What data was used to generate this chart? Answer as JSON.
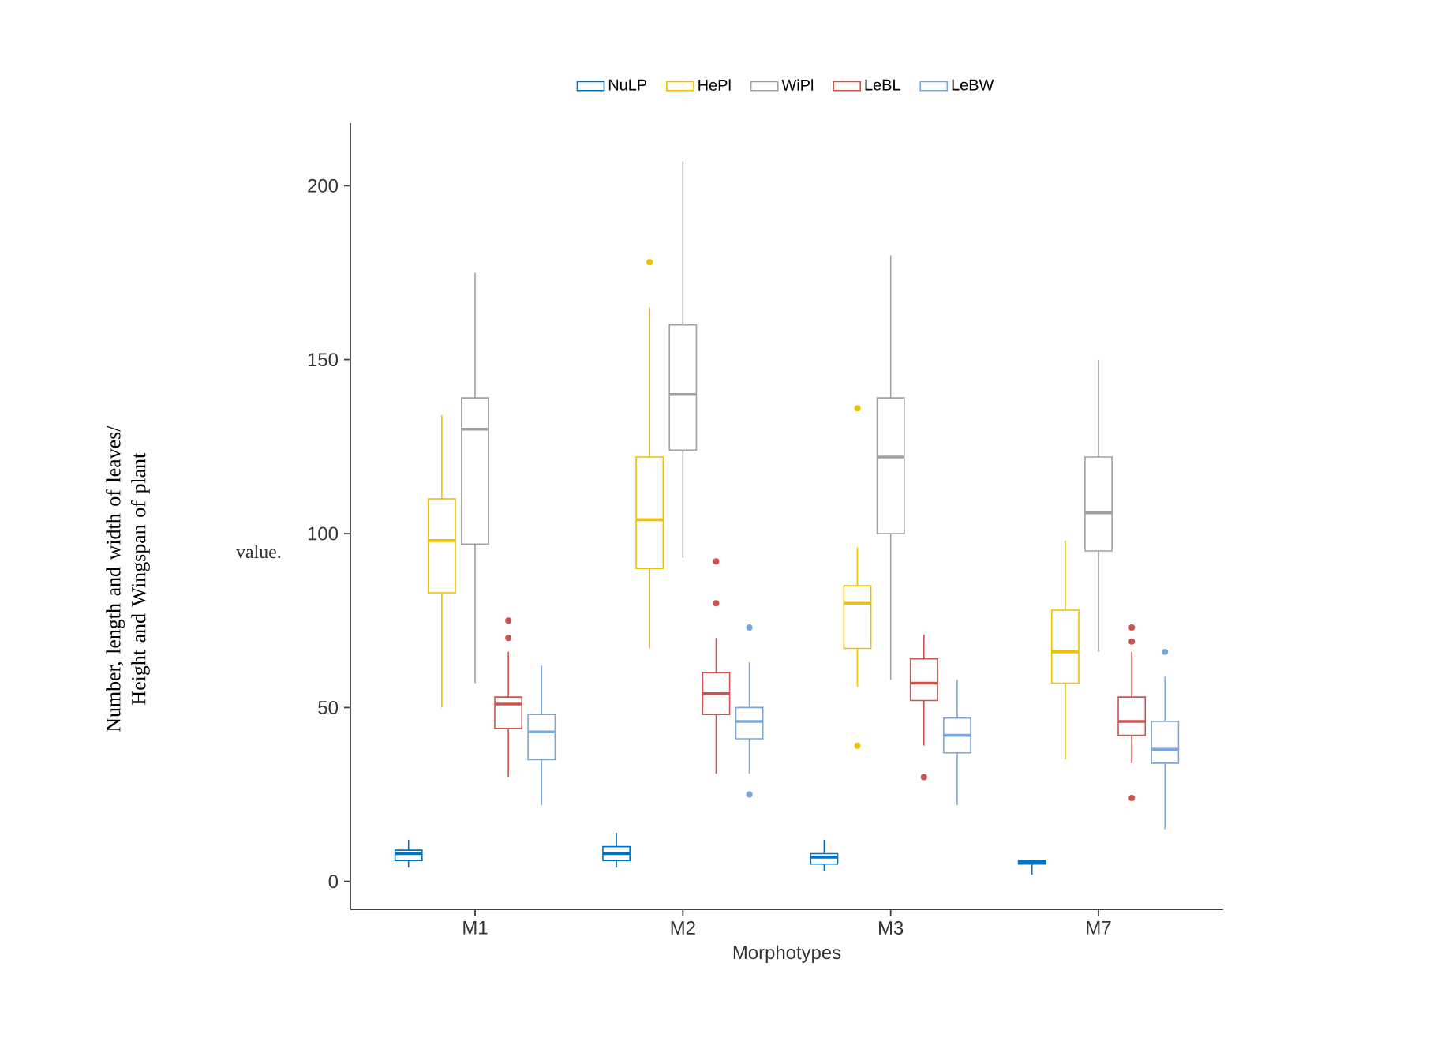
{
  "chart_data": {
    "type": "box",
    "xlabel": "Morphotypes",
    "ylabel": "value.",
    "annotations": [
      "Number, length and width of leaves/ Height and Wingspan of plant"
    ],
    "categories": [
      "M1",
      "M2",
      "M3",
      "M7"
    ],
    "ylim": [
      -8,
      218
    ],
    "yticks": [
      0,
      50,
      100,
      150,
      200
    ],
    "legend": "top",
    "series": [
      {
        "name": "NuLP",
        "color": "#0073c2",
        "boxes": [
          {
            "low": 4,
            "q1": 6,
            "median": 8,
            "q3": 9,
            "high": 12
          },
          {
            "low": 4,
            "q1": 6,
            "median": 8,
            "q3": 10,
            "high": 14
          },
          {
            "low": 3,
            "q1": 5,
            "median": 7,
            "q3": 8,
            "high": 12
          },
          {
            "low": 2,
            "q1": 5,
            "median": 5.5,
            "q3": 6,
            "high": 6
          }
        ]
      },
      {
        "name": "HePl",
        "color": "#efc000",
        "boxes": [
          {
            "low": 50,
            "q1": 83,
            "median": 98,
            "q3": 110,
            "high": 134
          },
          {
            "low": 67,
            "q1": 90,
            "median": 104,
            "q3": 122,
            "high": 165,
            "outliers": [
              178
            ]
          },
          {
            "low": 56,
            "q1": 67,
            "median": 80,
            "q3": 85,
            "high": 96,
            "outliers": [
              136,
              39
            ]
          },
          {
            "low": 35,
            "q1": 57,
            "median": 66,
            "q3": 78,
            "high": 98
          }
        ]
      },
      {
        "name": "WiPl",
        "color": "#a0a0a0",
        "boxes": [
          {
            "low": 57,
            "q1": 97,
            "median": 130,
            "q3": 139,
            "high": 175
          },
          {
            "low": 93,
            "q1": 124,
            "median": 140,
            "q3": 160,
            "high": 207
          },
          {
            "low": 58,
            "q1": 100,
            "median": 122,
            "q3": 139,
            "high": 180
          },
          {
            "low": 66,
            "q1": 95,
            "median": 106,
            "q3": 122,
            "high": 150
          }
        ]
      },
      {
        "name": "LeBL",
        "color": "#cd534c",
        "boxes": [
          {
            "low": 30,
            "q1": 44,
            "median": 51,
            "q3": 53,
            "high": 66,
            "outliers": [
              75,
              70
            ]
          },
          {
            "low": 31,
            "q1": 48,
            "median": 54,
            "q3": 60,
            "high": 70,
            "outliers": [
              92,
              80
            ]
          },
          {
            "low": 39,
            "q1": 52,
            "median": 57,
            "q3": 64,
            "high": 71,
            "outliers": [
              30
            ]
          },
          {
            "low": 34,
            "q1": 42,
            "median": 46,
            "q3": 53,
            "high": 66,
            "outliers": [
              73,
              69,
              24
            ]
          }
        ]
      },
      {
        "name": "LeBW",
        "color": "#7aa6dc",
        "boxes": [
          {
            "low": 22,
            "q1": 35,
            "median": 43,
            "q3": 48,
            "high": 62
          },
          {
            "low": 31,
            "q1": 41,
            "median": 46,
            "q3": 50,
            "high": 63,
            "outliers": [
              73,
              25
            ]
          },
          {
            "low": 22,
            "q1": 37,
            "median": 42,
            "q3": 47,
            "high": 58
          },
          {
            "low": 15,
            "q1": 34,
            "median": 38,
            "q3": 46,
            "high": 59,
            "outliers": [
              66
            ]
          }
        ]
      }
    ]
  }
}
